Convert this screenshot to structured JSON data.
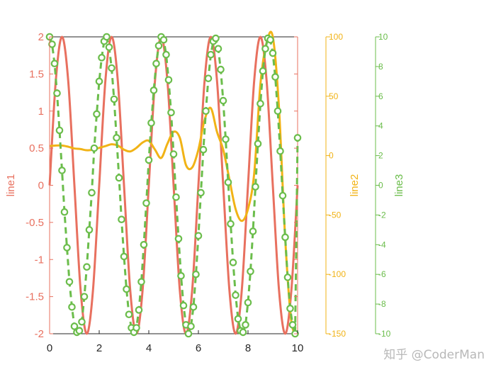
{
  "chart_data": {
    "type": "line",
    "x_axis": {
      "range": [
        0,
        10
      ],
      "ticks": [
        0,
        2,
        4,
        6,
        8,
        10
      ],
      "tick_labels": [
        "0",
        "2",
        "4",
        "6",
        "8",
        "10"
      ]
    },
    "axes": [
      {
        "id": "y1",
        "label": "line1",
        "color": "#e8705f",
        "range": [
          -2,
          2
        ],
        "ticks": [
          2,
          1.5,
          1,
          0.5,
          0,
          -0.5,
          -1,
          -1.5,
          -2
        ],
        "tick_labels": [
          "2",
          "1.5",
          "1",
          "0.5",
          "0",
          "-0.5",
          "-1",
          "-1.5",
          "-2"
        ]
      },
      {
        "id": "y2",
        "label": "line2",
        "color": "#f1b316",
        "range": [
          -150,
          100
        ],
        "ticks": [
          100,
          50,
          0,
          -50,
          -100,
          -150
        ],
        "tick_labels": [
          "100",
          "50",
          "0",
          "-50",
          "-100",
          "-150"
        ]
      },
      {
        "id": "y3",
        "label": "line3",
        "color": "#6bbd4b",
        "range": [
          -10,
          10
        ],
        "ticks": [
          10,
          8,
          6,
          4,
          2,
          0,
          -2,
          -4,
          -6,
          -8,
          -10
        ],
        "tick_labels": [
          "10",
          "8",
          "6",
          "4",
          "2",
          "0",
          "-2",
          "-4",
          "-6",
          "-8",
          "-10"
        ]
      }
    ],
    "series": [
      {
        "axis": "y1",
        "style": "solid",
        "x": [
          0,
          0.25,
          0.5,
          0.75,
          1.0,
          1.25,
          1.5,
          1.75,
          2.0,
          2.25,
          2.5,
          2.75,
          3.0,
          3.25,
          3.5,
          3.75,
          4.0,
          4.25,
          4.5,
          4.75,
          5.0,
          5.25,
          5.5,
          5.75,
          6.0,
          6.25,
          6.5,
          6.75,
          7.0,
          7.25,
          7.5,
          7.75,
          8.0,
          8.25,
          8.5,
          8.75,
          9.0,
          9.25,
          9.5,
          9.75,
          10.0
        ],
        "y": [
          0.0,
          1.41,
          2.0,
          1.41,
          0.0,
          -1.41,
          -2.0,
          -1.41,
          0.0,
          1.41,
          2.0,
          1.41,
          0.0,
          -1.41,
          -2.0,
          -1.41,
          0.0,
          1.41,
          2.0,
          1.41,
          0.0,
          -1.41,
          -2.0,
          -1.41,
          0.0,
          1.41,
          2.0,
          1.41,
          0.0,
          -1.41,
          -2.0,
          -1.41,
          0.0,
          1.41,
          2.0,
          1.41,
          0.0,
          -1.41,
          -2.0,
          -1.41,
          0.0
        ]
      },
      {
        "axis": "y2",
        "style": "solid",
        "x": [
          0,
          0.25,
          0.5,
          0.75,
          1.0,
          1.25,
          1.5,
          1.75,
          2.0,
          2.25,
          2.5,
          2.75,
          3.0,
          3.25,
          3.5,
          3.75,
          4.0,
          4.25,
          4.5,
          4.75,
          5.0,
          5.25,
          5.5,
          5.75,
          6.0,
          6.25,
          6.5,
          6.75,
          7.0,
          7.25,
          7.5,
          7.75,
          8.0,
          8.25,
          8.5,
          8.75,
          9.0,
          9.25,
          9.5,
          9.75,
          10.0
        ],
        "y": [
          8,
          8.5,
          8.5,
          7.5,
          6,
          5.5,
          4.5,
          5,
          6.5,
          8,
          9.5,
          8.5,
          5,
          3.5,
          6.5,
          11,
          12.5,
          5,
          -2,
          10,
          20,
          15,
          -8,
          -10,
          5,
          30,
          40,
          20,
          5,
          -20,
          -45,
          -55,
          -45,
          -15,
          60,
          95,
          100,
          40,
          -70,
          -140,
          -150
        ]
      },
      {
        "axis": "y3",
        "style": "dashed-circle",
        "x": [
          0,
          0.1,
          0.2,
          0.3,
          0.4,
          0.5,
          0.6,
          0.7,
          0.8,
          0.9,
          1.0,
          1.1,
          1.2,
          1.3,
          1.4,
          1.5,
          1.6,
          1.7,
          1.8,
          1.9,
          2.0,
          2.1,
          2.2,
          2.3,
          2.4,
          2.5,
          2.6,
          2.7,
          2.8,
          2.9,
          3.0,
          3.1,
          3.2,
          3.3,
          3.4,
          3.5,
          3.6,
          3.7,
          3.8,
          3.9,
          4.0,
          4.1,
          4.2,
          4.3,
          4.4,
          4.5,
          4.6,
          4.7,
          4.8,
          4.9,
          5.0,
          5.1,
          5.2,
          5.3,
          5.4,
          5.5,
          5.6,
          5.7,
          5.8,
          5.9,
          6.0,
          6.1,
          6.2,
          6.3,
          6.4,
          6.5,
          6.6,
          6.7,
          6.8,
          6.9,
          7.0,
          7.1,
          7.2,
          7.3,
          7.4,
          7.5,
          7.6,
          7.7,
          7.8,
          7.9,
          8.0,
          8.1,
          8.2,
          8.3,
          8.4,
          8.5,
          8.6,
          8.7,
          8.8,
          8.9,
          9.0,
          9.1,
          9.2,
          9.3,
          9.4,
          9.5,
          9.6,
          9.7,
          9.8,
          9.9,
          10.0
        ],
        "y": [
          10.0,
          9.5,
          8.2,
          6.2,
          3.7,
          1.0,
          -1.8,
          -4.2,
          -6.5,
          -8.2,
          -9.5,
          -9.9,
          -9.8,
          -9.2,
          -7.5,
          -5.5,
          -3.0,
          -0.5,
          2.5,
          4.8,
          7.0,
          8.6,
          9.7,
          10.0,
          9.3,
          7.9,
          5.8,
          3.2,
          0.5,
          -2.3,
          -4.8,
          -7.0,
          -8.7,
          -9.6,
          -9.9,
          -9.6,
          -8.4,
          -6.5,
          -4.0,
          -1.2,
          1.7,
          4.2,
          6.4,
          8.2,
          9.4,
          10.0,
          9.8,
          8.8,
          7.1,
          4.9,
          2.1,
          -0.8,
          -3.6,
          -6.1,
          -8.1,
          -9.4,
          -10.0,
          -9.5,
          -8.2,
          -6.0,
          -3.4,
          -0.5,
          2.4,
          5.0,
          7.2,
          8.8,
          9.7,
          9.9,
          9.2,
          7.8,
          5.7,
          3.1,
          0.2,
          -2.6,
          -5.2,
          -7.4,
          -9.0,
          -9.8,
          -9.9,
          -9.4,
          -7.9,
          -5.8,
          -3.1,
          -0.1,
          2.8,
          5.5,
          7.7,
          9.2,
          9.9,
          9.8,
          8.9,
          7.3,
          5.0,
          2.3,
          -0.7,
          -3.5,
          -6.2,
          -8.3,
          -9.4,
          -10.0,
          3.2
        ]
      }
    ]
  },
  "watermark": "知乎 @CoderMan"
}
